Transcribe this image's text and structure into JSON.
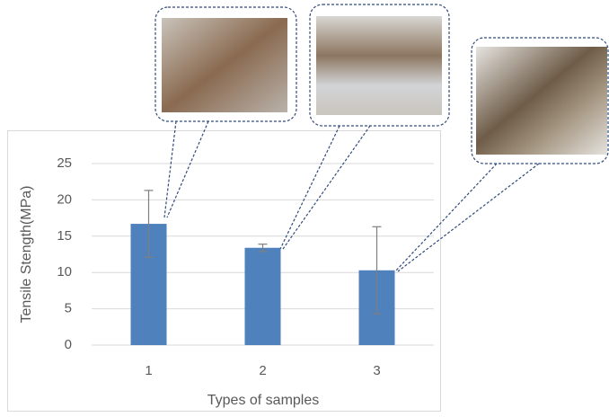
{
  "chart_data": {
    "type": "bar",
    "x_label": "Types of samples",
    "y_label": "Tensile Stength(MPa)",
    "categories": [
      "1",
      "2",
      "3"
    ],
    "values": [
      16.7,
      13.4,
      10.3
    ],
    "errors": [
      4.6,
      0.5,
      6.0
    ],
    "color": "#4f81bd",
    "ylim": [
      0,
      25
    ],
    "yticks": [
      0,
      5,
      10,
      15,
      20,
      25
    ],
    "grid": true
  }
}
